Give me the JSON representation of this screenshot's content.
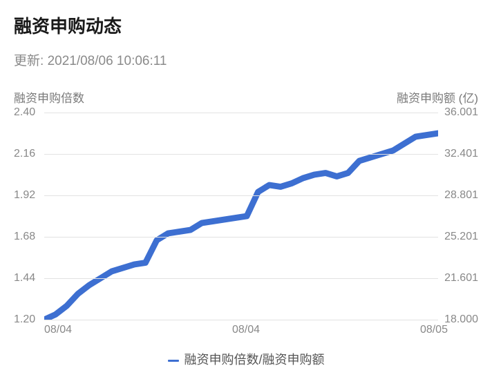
{
  "title": "融资申购动态",
  "updated_prefix": "更新: ",
  "updated_time": "2021/08/06 10:06:11",
  "chart": {
    "type": "line",
    "left_axis_label": "融资申购倍数",
    "right_axis_label": "融资申购额 (亿)",
    "left_ylim": [
      1.2,
      2.4
    ],
    "right_ylim": [
      18.0,
      36.001
    ],
    "yticks": [
      {
        "left": "2.40",
        "right": "36.001",
        "frac": 0.0
      },
      {
        "left": "2.16",
        "right": "32.401",
        "frac": 0.2
      },
      {
        "left": "1.92",
        "right": "28.801",
        "frac": 0.4
      },
      {
        "left": "1.68",
        "right": "25.201",
        "frac": 0.6
      },
      {
        "left": "1.44",
        "right": "21.601",
        "frac": 0.8
      },
      {
        "left": "1.20",
        "right": "18.000",
        "frac": 1.0
      }
    ],
    "xticks": [
      "08/04",
      "08/04",
      "08/05"
    ],
    "line_color": "#3d6fd1",
    "line_width": 2.2,
    "background_color": "#ffffff",
    "grid_color": "#e2e2e2",
    "series_values_left": [
      1.2,
      1.23,
      1.28,
      1.35,
      1.4,
      1.44,
      1.48,
      1.5,
      1.52,
      1.53,
      1.66,
      1.7,
      1.71,
      1.72,
      1.76,
      1.77,
      1.78,
      1.79,
      1.8,
      1.94,
      1.98,
      1.97,
      1.99,
      2.02,
      2.04,
      2.05,
      2.03,
      2.05,
      2.12,
      2.14,
      2.16,
      2.18,
      2.22,
      2.26,
      2.27,
      2.28
    ],
    "legend_label": "融资申购倍数/融资申购额"
  }
}
